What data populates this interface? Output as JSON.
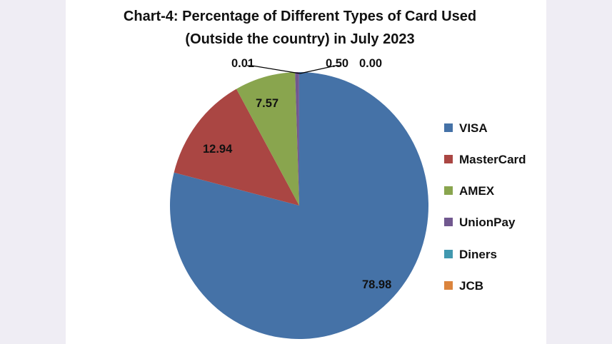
{
  "chart_data": {
    "type": "pie",
    "title": "Chart-4: Percentage of Different Types of Card Used",
    "subtitle": "(Outside  the country) in July 2023",
    "categories": [
      "VISA",
      "MasterCard",
      "AMEX",
      "UnionPay",
      "Diners",
      "JCB"
    ],
    "values": [
      78.98,
      12.94,
      7.57,
      0.5,
      0.01,
      0.0
    ],
    "labels": [
      "78.98",
      "12.94",
      "7.57",
      "0.50",
      "0.01",
      "0.00"
    ],
    "colors": [
      "#4572a7",
      "#aa4643",
      "#89a54e",
      "#71588f",
      "#4198af",
      "#db843d"
    ],
    "start": "top",
    "direction": "clockwise",
    "legend_position": "right"
  }
}
